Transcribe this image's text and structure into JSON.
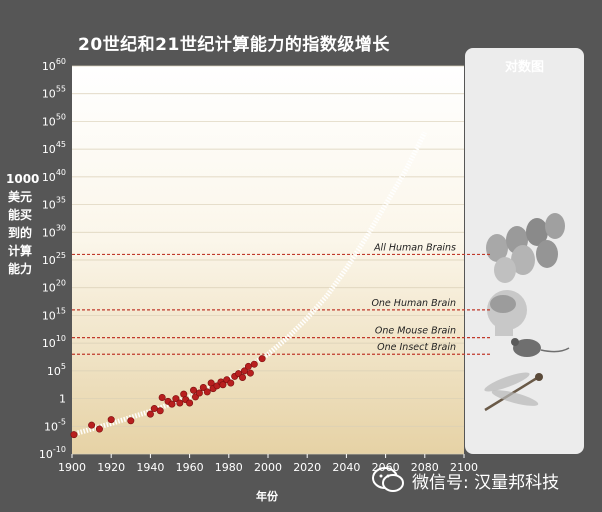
{
  "chart_data": {
    "type": "scatter",
    "title": "20世纪和21世纪计算能力的指数级增长",
    "xlabel": "年份",
    "ylabel": [
      "1000",
      "美元",
      "能买",
      "到的",
      "计算",
      "能力"
    ],
    "x_ticks": [
      "1900",
      "1920",
      "1940",
      "1960",
      "1980",
      "2000",
      "2020",
      "2040",
      "2060",
      "2080",
      "2100"
    ],
    "y_ticks": [
      "10-10",
      "10-5",
      "1",
      "105",
      "1010",
      "1015",
      "1020",
      "1025",
      "1030",
      "1035",
      "1040",
      "1045",
      "1050",
      "1055",
      "1060"
    ],
    "xlim": [
      1900,
      2100
    ],
    "ylim_log10": [
      -10,
      60
    ],
    "reference_lines": [
      {
        "label": "All Human Brains",
        "log10_value": 26
      },
      {
        "label": "One Human Brain",
        "log10_value": 16
      },
      {
        "label": "One Mouse Brain",
        "log10_value": 11
      },
      {
        "label": "One Insect Brain",
        "log10_value": 8
      }
    ],
    "points": [
      {
        "x": 1901,
        "y": -6.5
      },
      {
        "x": 1910,
        "y": -4.8
      },
      {
        "x": 1914,
        "y": -5.5
      },
      {
        "x": 1920,
        "y": -3.8
      },
      {
        "x": 1930,
        "y": -4.0
      },
      {
        "x": 1940,
        "y": -2.8
      },
      {
        "x": 1942,
        "y": -1.8
      },
      {
        "x": 1945,
        "y": -2.2
      },
      {
        "x": 1946,
        "y": 0.2
      },
      {
        "x": 1949,
        "y": -0.5
      },
      {
        "x": 1951,
        "y": -1.0
      },
      {
        "x": 1953,
        "y": 0.0
      },
      {
        "x": 1955,
        "y": -0.8
      },
      {
        "x": 1957,
        "y": 0.8
      },
      {
        "x": 1958,
        "y": -0.2
      },
      {
        "x": 1960,
        "y": -0.8
      },
      {
        "x": 1962,
        "y": 1.5
      },
      {
        "x": 1963,
        "y": 0.3
      },
      {
        "x": 1965,
        "y": 1.0
      },
      {
        "x": 1967,
        "y": 2.0
      },
      {
        "x": 1969,
        "y": 1.2
      },
      {
        "x": 1971,
        "y": 2.8
      },
      {
        "x": 1972,
        "y": 1.8
      },
      {
        "x": 1974,
        "y": 2.3
      },
      {
        "x": 1976,
        "y": 3.0
      },
      {
        "x": 1977,
        "y": 2.5
      },
      {
        "x": 1979,
        "y": 3.4
      },
      {
        "x": 1981,
        "y": 2.8
      },
      {
        "x": 1983,
        "y": 4.0
      },
      {
        "x": 1985,
        "y": 4.5
      },
      {
        "x": 1987,
        "y": 3.8
      },
      {
        "x": 1988,
        "y": 5.0
      },
      {
        "x": 1990,
        "y": 5.8
      },
      {
        "x": 1991,
        "y": 4.6
      },
      {
        "x": 1993,
        "y": 6.2
      },
      {
        "x": 1997,
        "y": 7.2
      }
    ],
    "trend": [
      {
        "x": 1900,
        "y": -6.5
      },
      {
        "x": 1920,
        "y": -4.5
      },
      {
        "x": 1940,
        "y": -2.3
      },
      {
        "x": 1960,
        "y": 0.3
      },
      {
        "x": 1980,
        "y": 3.5
      },
      {
        "x": 2000,
        "y": 8.0
      },
      {
        "x": 2010,
        "y": 11.0
      },
      {
        "x": 2020,
        "y": 14.5
      },
      {
        "x": 2030,
        "y": 18.5
      },
      {
        "x": 2040,
        "y": 23.5
      },
      {
        "x": 2050,
        "y": 29.0
      },
      {
        "x": 2060,
        "y": 35.0
      },
      {
        "x": 2070,
        "y": 41.0
      },
      {
        "x": 2080,
        "y": 48.0
      }
    ]
  },
  "log_panel_title": "对数图",
  "watermark": "微信号: 汉量邦科技",
  "colors": {
    "background": "#565656",
    "plot_top": "#ffffff",
    "plot_bottom": "#e8d4a8",
    "point": "#b81f1f",
    "reference_line": "#c0392b",
    "trend": "#ffffff"
  }
}
